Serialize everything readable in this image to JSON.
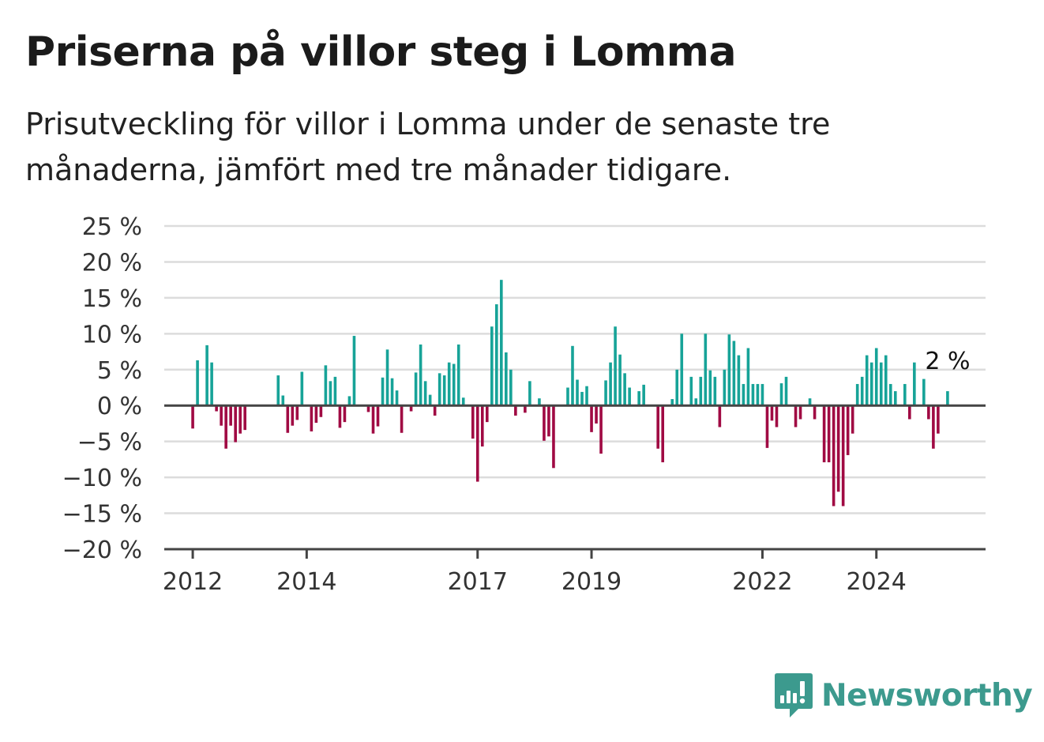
{
  "title": "Priserna på villor steg i Lomma",
  "subtitle": "Prisutveckling för villor i Lomma under de senaste tre månaderna, jämfört med tre månader tidigare.",
  "brand": {
    "name": "Newsworthy",
    "color": "#3c9a8e"
  },
  "colors": {
    "positive": "#17a398",
    "negative": "#a00a43",
    "grid": "#dcdcdc",
    "axis": "#444444"
  },
  "chart_data": {
    "type": "bar",
    "title": "Priserna på villor steg i Lomma",
    "xlabel": "",
    "ylabel": "",
    "ylim": [
      -20,
      25
    ],
    "y_ticks": [
      25,
      20,
      15,
      10,
      5,
      0,
      -5,
      -10,
      -15,
      -20
    ],
    "y_tick_labels": [
      "25 %",
      "20 %",
      "15 %",
      "10 %",
      "5 %",
      "0 %",
      "−5 %",
      "−10 %",
      "−15 %",
      "−20 %"
    ],
    "x_tick_labels": [
      "2012",
      "2014",
      "2017",
      "2019",
      "2022",
      "2024"
    ],
    "x_tick_dates": [
      "2012-01",
      "2014-01",
      "2017-01",
      "2019-01",
      "2022-01",
      "2024-01"
    ],
    "x_range": [
      "2011-07",
      "2025-12"
    ],
    "start_month": "2012-01",
    "grid": true,
    "end_label": "2 %",
    "values": [
      -3.2,
      6.3,
      null,
      8.4,
      6.0,
      -0.8,
      -2.8,
      -6.0,
      -2.8,
      -5.1,
      -3.9,
      -3.4,
      null,
      null,
      null,
      null,
      null,
      null,
      4.2,
      1.4,
      -3.8,
      -2.8,
      -2.0,
      4.7,
      null,
      -3.6,
      -2.4,
      -1.6,
      5.6,
      3.4,
      4.0,
      -3.1,
      -2.3,
      1.3,
      9.7,
      null,
      null,
      -0.9,
      -3.9,
      -2.9,
      3.9,
      7.8,
      3.8,
      2.1,
      -3.8,
      null,
      -0.8,
      4.6,
      8.5,
      3.4,
      1.5,
      -1.4,
      4.5,
      4.2,
      6.0,
      5.8,
      8.5,
      1.1,
      null,
      -4.6,
      -10.6,
      -5.7,
      -2.3,
      11.0,
      14.1,
      17.5,
      7.4,
      5.0,
      -1.4,
      null,
      -1.0,
      3.4,
      null,
      1.0,
      -4.9,
      -4.3,
      -8.7,
      null,
      null,
      2.5,
      8.3,
      3.6,
      1.9,
      2.7,
      -3.7,
      -2.5,
      -6.7,
      3.5,
      6.0,
      11.0,
      7.1,
      4.5,
      2.5,
      null,
      2.0,
      2.9,
      null,
      null,
      -6.0,
      -7.9,
      null,
      0.9,
      5.0,
      10.0,
      null,
      4.0,
      1.0,
      4.0,
      10.0,
      4.9,
      4.0,
      -3.0,
      5.0,
      9.9,
      9.0,
      7.0,
      3.0,
      8.0,
      3.0,
      3.0,
      3.0,
      -5.9,
      -2.1,
      -3.0,
      3.1,
      4.0,
      null,
      -3.0,
      -1.9,
      null,
      1.0,
      -1.9,
      null,
      -7.9,
      -7.9,
      -14.0,
      -12.0,
      -14.0,
      -6.9,
      -3.9,
      3.0,
      4.0,
      7.0,
      6.0,
      8.0,
      6.0,
      7.0,
      3.0,
      2.0,
      null,
      3.0,
      -1.9,
      6.0,
      null,
      3.7,
      -1.9,
      -6.0,
      -3.9,
      null,
      2.0
    ]
  }
}
